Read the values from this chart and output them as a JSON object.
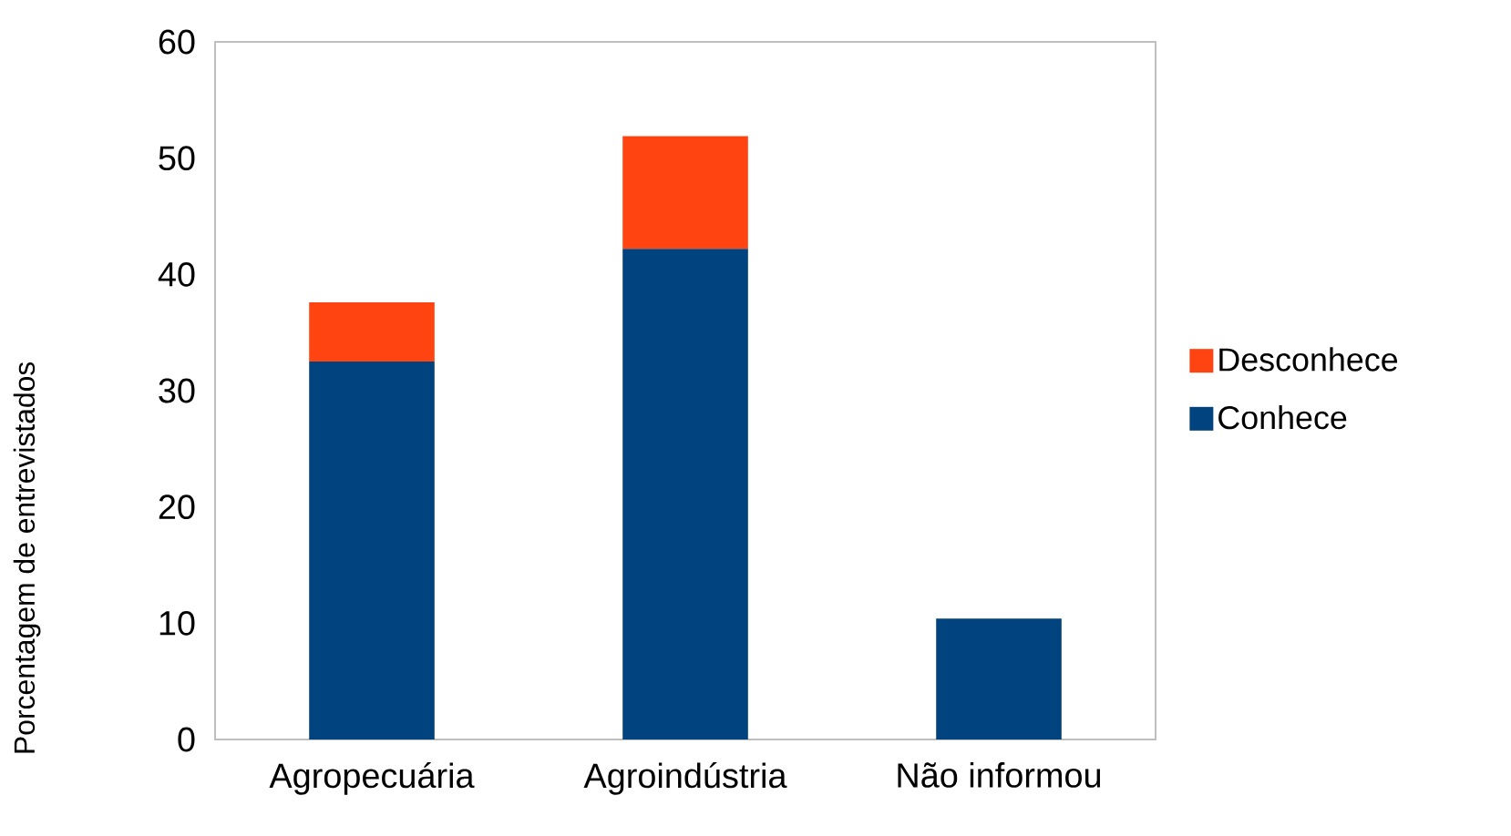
{
  "chart_data": {
    "type": "bar",
    "stacked": true,
    "ylabel": "Porcentagem de entrevistados",
    "categories": [
      "Agropecuária",
      "Agroindústria",
      "Não informou"
    ],
    "series": [
      {
        "name": "Conhece",
        "color": "#00437f",
        "values": [
          32.5,
          42.2,
          10.4
        ]
      },
      {
        "name": "Desconhece",
        "color": "#ff4411",
        "values": [
          5.1,
          9.7,
          0
        ]
      }
    ],
    "ylim": [
      0,
      60
    ],
    "yticks": [
      0,
      10,
      20,
      30,
      40,
      50,
      60
    ],
    "grid": false,
    "legend": "right"
  }
}
